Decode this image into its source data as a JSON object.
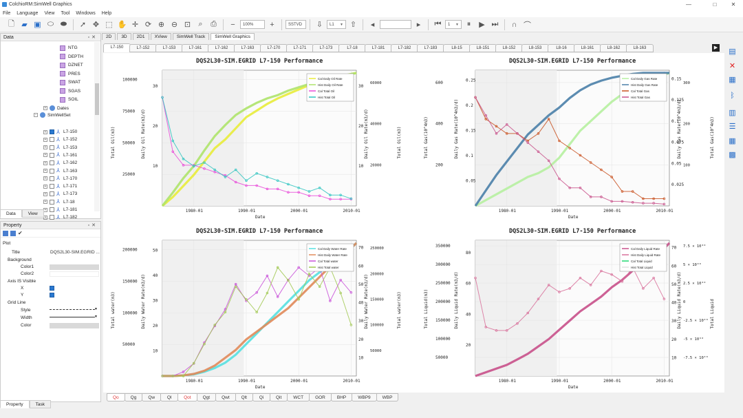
{
  "window": {
    "title": "ColchioRM:SimWell Graphics",
    "minimize": "—",
    "maximize": "□",
    "close": "✕"
  },
  "menu": [
    "File",
    "Language",
    "View",
    "Tool",
    "Windows",
    "Help"
  ],
  "toolbar": {
    "zoom_value": "100%",
    "depth_mode": "SSTVD",
    "layer": "L1",
    "frame_value": "1"
  },
  "data_panel": {
    "title": "Data",
    "tree_items": [
      {
        "label": "NTG",
        "kind": "prop"
      },
      {
        "label": "DEPTH",
        "kind": "prop"
      },
      {
        "label": "DZNET",
        "kind": "prop"
      },
      {
        "label": "PRES",
        "kind": "prop"
      },
      {
        "label": "SWAT",
        "kind": "prop"
      },
      {
        "label": "SGAS",
        "kind": "prop"
      },
      {
        "label": "SOIL",
        "kind": "prop"
      },
      {
        "label": "Dates",
        "kind": "group"
      },
      {
        "label": "SimWellSet",
        "kind": "group"
      }
    ],
    "wells": [
      {
        "label": "L7-150",
        "checked": true
      },
      {
        "label": "L7-152",
        "checked": false
      },
      {
        "label": "L7-153",
        "checked": false
      },
      {
        "label": "L7-161",
        "checked": false
      },
      {
        "label": "L7-162",
        "checked": false
      },
      {
        "label": "L7-163",
        "checked": false
      },
      {
        "label": "L7-170",
        "checked": false
      },
      {
        "label": "L7-171",
        "checked": false
      },
      {
        "label": "L7-173",
        "checked": false
      },
      {
        "label": "L7-18",
        "checked": false
      },
      {
        "label": "L7-181",
        "checked": false
      },
      {
        "label": "L7-182",
        "checked": false
      }
    ],
    "tabs": [
      "Data",
      "View"
    ]
  },
  "property_panel": {
    "title": "Property",
    "section": "Plot",
    "rows": [
      {
        "key": "Title",
        "value": "DQS2L30-SIM.EGRID ..."
      },
      {
        "key": "Background",
        "value": ""
      },
      {
        "key": "Color1",
        "value": ""
      },
      {
        "key": "Color2",
        "value": ""
      },
      {
        "key": "Axis IS Visible",
        "value": ""
      },
      {
        "key": "X",
        "value": ""
      },
      {
        "key": "Y",
        "value": ""
      },
      {
        "key": "Grid Line",
        "value": ""
      },
      {
        "key": "Style",
        "value": ""
      },
      {
        "key": "Width",
        "value": ""
      },
      {
        "key": "Color",
        "value": ""
      }
    ],
    "tabs": [
      "Property",
      "Task"
    ]
  },
  "view_tabs": [
    "2D",
    "3D",
    "2D1",
    "XView",
    "SimWell Track",
    "SimWell Graphics"
  ],
  "well_tabs": [
    "L7-150",
    "L7-152",
    "L7-153",
    "L7-161",
    "L7-162",
    "L7-163",
    "L7-170",
    "L7-171",
    "L7-173",
    "L7-18",
    "L7-181",
    "L7-182",
    "L7-183",
    "L8-15",
    "L8-151",
    "L8-152",
    "L8-153",
    "L8-16",
    "L8-161",
    "L8-162",
    "L8-163"
  ],
  "bottom_tabs": [
    "Qo",
    "Qg",
    "Qw",
    "Ql",
    "Qot",
    "Qgt",
    "Qwt",
    "Qlt",
    "Qi",
    "Qit",
    "WCT",
    "GOR",
    "BHP",
    "WBP9",
    "WBP"
  ],
  "colors": {
    "cal_oil": "#d8e04a",
    "hist_oil": "#9bd36a",
    "cal_total": "#e04ad8",
    "hist_total": "#2ec4b6"
  },
  "chart_data": [
    {
      "type": "line",
      "title": "DQS2L30-SIM.EGRID L7-150 Performance",
      "xlabel": "Date",
      "y_axes": [
        "Total Oil(m3)",
        "Daily Oil Rate(m3/d)",
        "Daily Oil Rate(m3/d)",
        "Total Oil(m3)"
      ],
      "x_ticks": [
        "1980-01",
        "1990-01",
        "2000-01",
        "2010-01"
      ],
      "y_left_ticks": [
        "25000",
        "50000",
        "75000",
        "100000"
      ],
      "y_left2_ticks": [
        "10",
        "20",
        "30"
      ],
      "y_right_ticks": [
        "10",
        "20",
        "30"
      ],
      "y_right2_ticks": [
        "20000",
        "40000",
        "60000"
      ],
      "legend": [
        "Cal Daily Oil Rate",
        "Hist Daily Oil Rate",
        "Cal Total Oil",
        "Hist Total Oil"
      ],
      "series": [
        {
          "name": "Cal Total Oil",
          "x": [
            1974,
            1976,
            1978,
            1980,
            1982,
            1984,
            1986,
            1988,
            1990,
            1992,
            1994,
            1996,
            1998,
            2000,
            2002,
            2004,
            2006,
            2008,
            2010,
            2011
          ],
          "values": [
            0,
            8000,
            18000,
            28000,
            40000,
            52000,
            60000,
            70000,
            80000,
            86000,
            92000,
            97000,
            101000,
            105000,
            109000,
            112000,
            115000,
            117000,
            119000,
            120000
          ]
        },
        {
          "name": "Hist Total Oil",
          "x": [
            1974,
            1976,
            1978,
            1980,
            1982,
            1984,
            1986,
            1988,
            1990,
            1992,
            1994,
            1996,
            1998,
            2000,
            2002,
            2004,
            2006,
            2008,
            2010,
            2011
          ],
          "values": [
            0,
            12000,
            25000,
            36000,
            50000,
            63000,
            73000,
            82000,
            88000,
            93000,
            97000,
            100000,
            104000,
            107000,
            110000,
            113000,
            115000,
            117000,
            119000,
            120000
          ]
        },
        {
          "name": "Cal Daily Oil Rate",
          "x": [
            1974,
            1976,
            1978,
            1980,
            1982,
            1984,
            1986,
            1988,
            1990,
            1992,
            1994,
            1996,
            1998,
            2000,
            2002,
            2004,
            2006,
            2008,
            2010
          ],
          "values": [
            32,
            16,
            12,
            12,
            11,
            10,
            9,
            7,
            6,
            6,
            5,
            5,
            4,
            4,
            3,
            3,
            2,
            2,
            2
          ]
        },
        {
          "name": "Hist Daily Oil Rate",
          "x": [
            1974,
            1976,
            1978,
            1980,
            1982,
            1984,
            1986,
            1988,
            1990,
            1992,
            1994,
            1996,
            1998,
            2000,
            2002,
            2004,
            2006,
            2008,
            2010
          ],
          "values": [
            30,
            18,
            13,
            11,
            12,
            10,
            8,
            10,
            7,
            9,
            8,
            7,
            6,
            5,
            4,
            5,
            3,
            3,
            2
          ]
        }
      ]
    },
    {
      "type": "line",
      "title": "DQS2L30-SIM.EGRID L7-150 Performance",
      "xlabel": "Date",
      "y_axes": [
        "Total Gas(10^4m3)",
        "Daily Gas Rate(10^4m3/d)",
        "Daily Gas Rate(10^4m3/d)",
        "Total Gas(10^4m3)"
      ],
      "x_ticks": [
        "1980-01",
        "1990-01",
        "2000-01",
        "2010-01"
      ],
      "y_left_ticks": [
        "200",
        "400",
        "600"
      ],
      "y_left2_ticks": [
        "0.05",
        "0.1",
        "0.15",
        "0.2",
        "0.25"
      ],
      "y_right_ticks": [
        "0.025",
        "0.05",
        "0.075",
        "0.1",
        "0.125",
        "0.15"
      ],
      "y_right2_ticks": [
        "100",
        "200",
        "300"
      ],
      "legend": [
        "Cal Daily Gas Rate",
        "Hist Daily Gas Rate",
        "Cal Total Gas",
        "Hist Total Gas"
      ],
      "series": [
        {
          "name": "Cal Total Gas",
          "x": [
            1974,
            1976,
            1978,
            1980,
            1982,
            1984,
            1986,
            1988,
            1990,
            1992,
            1994,
            1996,
            1998,
            2000,
            2002,
            2004,
            2006,
            2008,
            2010,
            2011
          ],
          "values": [
            0,
            30,
            60,
            90,
            120,
            150,
            170,
            200,
            250,
            320,
            390,
            440,
            490,
            540,
            580,
            610,
            640,
            660,
            680,
            690
          ]
        },
        {
          "name": "Hist Total Gas",
          "x": [
            1974,
            1976,
            1978,
            1980,
            1982,
            1984,
            1986,
            1988,
            1990,
            1992,
            1994,
            1996,
            1998,
            2000,
            2002,
            2004,
            2006,
            2008,
            2010,
            2011
          ],
          "values": [
            0,
            80,
            160,
            230,
            300,
            370,
            420,
            470,
            510,
            560,
            600,
            630,
            650,
            665,
            675,
            685,
            690,
            690,
            690,
            690
          ]
        },
        {
          "name": "Cal Daily Gas Rate",
          "x": [
            1974,
            1976,
            1978,
            1980,
            1982,
            1984,
            1986,
            1988,
            1990,
            1992,
            1994,
            1996,
            1998,
            2000,
            2002,
            2004,
            2006,
            2008,
            2010
          ],
          "values": [
            0.15,
            0.12,
            0.11,
            0.1,
            0.1,
            0.09,
            0.1,
            0.12,
            0.09,
            0.08,
            0.07,
            0.06,
            0.05,
            0.04,
            0.02,
            0.02,
            0.01,
            0.01,
            0.01
          ]
        },
        {
          "name": "Hist Daily Gas Rate",
          "x": [
            1974,
            1976,
            1978,
            1980,
            1982,
            1984,
            1986,
            1988,
            1990,
            1992,
            1994,
            1996,
            1998,
            2000,
            2002,
            2004,
            2006,
            2008,
            2010
          ],
          "values": [
            0.12,
            0.1,
            0.08,
            0.09,
            0.08,
            0.07,
            0.06,
            0.05,
            0.03,
            0.02,
            0.02,
            0.01,
            0.01,
            0.005,
            0.005,
            0.004,
            0.003,
            0.003,
            0.002
          ]
        }
      ]
    },
    {
      "type": "line",
      "title": "DQS2L30-SIM.EGRID L7-150 Performance",
      "xlabel": "Date",
      "y_axes": [
        "Total water(m3)",
        "Daily Water Rate(m3/d)",
        "Daily Water Rate(m3/d)",
        "Total water(m3)"
      ],
      "x_ticks": [
        "1980-01",
        "1990-01",
        "2000-01",
        "2010-01"
      ],
      "y_left_ticks": [
        "50000",
        "100000",
        "150000",
        "200000"
      ],
      "y_left2_ticks": [
        "10",
        "20",
        "30",
        "40",
        "50"
      ],
      "y_right_ticks": [
        "10",
        "20",
        "30",
        "40",
        "50",
        "60",
        "70"
      ],
      "y_right2_ticks": [
        "50000",
        "100000",
        "150000",
        "200000",
        "250000"
      ],
      "legend": [
        "Cal Daily Water Rate",
        "Hist Daily Water Rate",
        "Cal Total water",
        "Hist Total water"
      ],
      "series": [
        {
          "name": "Cal Total water",
          "x": [
            1974,
            1976,
            1978,
            1980,
            1982,
            1984,
            1986,
            1988,
            1990,
            1992,
            1994,
            1996,
            1998,
            2000,
            2002,
            2004,
            2006,
            2008,
            2010,
            2011
          ],
          "values": [
            0,
            0,
            1000,
            3000,
            8000,
            15000,
            25000,
            40000,
            60000,
            80000,
            100000,
            120000,
            140000,
            160000,
            180000,
            195000,
            210000,
            225000,
            240000,
            250000
          ]
        },
        {
          "name": "Hist Total water",
          "x": [
            1974,
            1976,
            1978,
            1980,
            1982,
            1984,
            1986,
            1988,
            1990,
            1992,
            1994,
            1996,
            1998,
            2000,
            2002,
            2004,
            2006,
            2008,
            2010,
            2011
          ],
          "values": [
            0,
            0,
            1000,
            4000,
            10000,
            20000,
            35000,
            50000,
            70000,
            85000,
            100000,
            115000,
            130000,
            150000,
            170000,
            190000,
            210000,
            225000,
            245000,
            255000
          ]
        },
        {
          "name": "Cal Daily Water Rate",
          "x": [
            1974,
            1976,
            1978,
            1980,
            1982,
            1984,
            1986,
            1988,
            1990,
            1992,
            1994,
            1996,
            1998,
            2000,
            2002,
            2004,
            2006,
            2008,
            2010
          ],
          "values": [
            0,
            0,
            1,
            3,
            8,
            12,
            16,
            22,
            18,
            20,
            24,
            19,
            23,
            26,
            24,
            26,
            18,
            23,
            20
          ]
        },
        {
          "name": "Hist Daily Water Rate",
          "x": [
            1974,
            1976,
            1978,
            1980,
            1982,
            1984,
            1986,
            1988,
            1990,
            1992,
            1994,
            1996,
            1998,
            2000,
            2002,
            2004,
            2006,
            2008,
            2010
          ],
          "values": [
            0,
            0,
            0,
            2,
            5,
            8,
            10,
            14,
            12,
            10,
            13,
            17,
            15,
            12,
            16,
            14,
            17,
            13,
            8
          ]
        }
      ]
    },
    {
      "type": "line",
      "title": "DQS2L30-SIM.EGRID L7-150 Performance",
      "xlabel": "Date",
      "y_axes": [
        "Total Liquid(m3)",
        "Daily Liquid Rate(m3/d)",
        "Daily Liquid Rate(m3/d)",
        "Total Liquid"
      ],
      "x_ticks": [
        "1980-01",
        "1990-01",
        "2000-01",
        "2010-01"
      ],
      "y_left_ticks": [
        "50000",
        "100000",
        "150000",
        "200000",
        "250000",
        "300000",
        "350000"
      ],
      "y_left2_ticks": [
        "20",
        "40",
        "60",
        "80"
      ],
      "y_right_ticks": [
        "10",
        "20",
        "30",
        "40",
        "50",
        "60",
        "70"
      ],
      "y_right2_ticks": [
        "-7.5 × 10³⁰",
        "-5 × 10³⁰",
        "-2.5 × 10³⁰",
        "0",
        "2.5 × 10³⁰",
        "5 × 10³⁰",
        "7.5 × 10³⁰"
      ],
      "legend": [
        "Cal Daily Liquid Rate",
        "Hist Daily Liquid Rate",
        "Cal Total Liquid",
        "Hist Total Liquid"
      ],
      "series": [
        {
          "name": "Cal Total Liquid",
          "x": [
            1974,
            1976,
            1978,
            1980,
            1982,
            1984,
            1986,
            1988,
            1990,
            1992,
            1994,
            1996,
            1998,
            2000,
            2002,
            2004,
            2006,
            2008,
            2010,
            2011
          ],
          "values": [
            0,
            10000,
            20000,
            30000,
            45000,
            60000,
            80000,
            100000,
            125000,
            150000,
            175000,
            195000,
            215000,
            240000,
            260000,
            285000,
            305000,
            325000,
            345000,
            360000
          ]
        },
        {
          "name": "Hist Daily Liquid Rate",
          "x": [
            1974,
            1976,
            1978,
            1980,
            1982,
            1984,
            1986,
            1988,
            1990,
            1992,
            1994,
            1996,
            1998,
            2000,
            2002,
            2004,
            2006,
            2008,
            2010
          ],
          "values": [
            28,
            14,
            13,
            13,
            15,
            18,
            22,
            26,
            24,
            25,
            28,
            26,
            30,
            29,
            27,
            31,
            25,
            28,
            22
          ]
        }
      ]
    }
  ]
}
